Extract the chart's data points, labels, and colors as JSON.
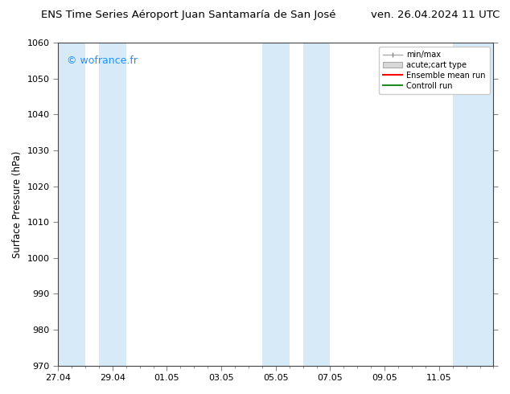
{
  "title_left": "ENS Time Series Aéroport Juan Santamaría de San José",
  "title_right": "ven. 26.04.2024 11 UTC",
  "ylabel": "Surface Pressure (hPa)",
  "ylim": [
    970,
    1060
  ],
  "yticks": [
    970,
    980,
    990,
    1000,
    1010,
    1020,
    1030,
    1040,
    1050,
    1060
  ],
  "xtick_labels": [
    "27.04",
    "29.04",
    "01.05",
    "03.05",
    "05.05",
    "07.05",
    "09.05",
    "11.05"
  ],
  "xtick_positions": [
    0,
    2,
    4,
    6,
    8,
    10,
    12,
    14
  ],
  "xlim": [
    0,
    16
  ],
  "watermark": "© wofrance.fr",
  "watermark_color": "#1E90FF",
  "bg_color": "#ffffff",
  "plot_bg_color": "#ffffff",
  "shaded_bands": [
    {
      "x_start": 0.0,
      "x_end": 1.0,
      "color": "#d6eaf8"
    },
    {
      "x_start": 1.5,
      "x_end": 2.5,
      "color": "#d6eaf8"
    },
    {
      "x_start": 7.5,
      "x_end": 8.5,
      "color": "#d6eaf8"
    },
    {
      "x_start": 9.0,
      "x_end": 10.0,
      "color": "#d6eaf8"
    },
    {
      "x_start": 14.5,
      "x_end": 16.0,
      "color": "#d6eaf8"
    }
  ],
  "legend_items": [
    {
      "label": "min/max",
      "type": "errorbar",
      "color": "#aaaaaa"
    },
    {
      "label": "acute;cart type",
      "type": "box",
      "facecolor": "#d0d0d0",
      "edgecolor": "#aaaaaa"
    },
    {
      "label": "Ensemble mean run",
      "type": "line",
      "color": "#ff0000"
    },
    {
      "label": "Controll run",
      "type": "line",
      "color": "#228B22"
    }
  ],
  "title_fontsize": 9.5,
  "tick_fontsize": 8,
  "label_fontsize": 8.5,
  "watermark_fontsize": 9
}
